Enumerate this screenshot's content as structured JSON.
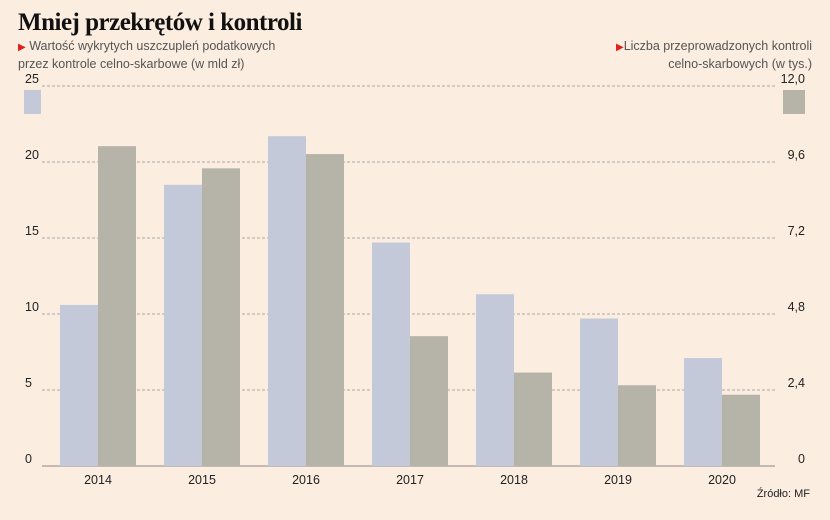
{
  "chart_data": {
    "type": "bar",
    "title": "Mniej przekrętów i kontroli",
    "categories": [
      "2014",
      "2015",
      "2016",
      "2017",
      "2018",
      "2019",
      "2020"
    ],
    "series": [
      {
        "name": "Wartość wykrytych uszczupleń podatkowych przez kontrole celno-skarbowe (w mld zł)",
        "axis": "left",
        "color": "#c3c9d9",
        "values": [
          10.6,
          18.5,
          21.7,
          14.7,
          11.3,
          9.7,
          7.1
        ]
      },
      {
        "name": "Liczba przeprowadzonych kontroli celno-skarbowych (w tys.)",
        "axis": "right",
        "color": "#b6b4a9",
        "values": [
          10.1,
          9.4,
          9.85,
          4.1,
          2.95,
          2.55,
          2.25
        ]
      }
    ],
    "left_axis": {
      "ylim": [
        0,
        25
      ],
      "ticks": [
        "0",
        "5",
        "10",
        "15",
        "20",
        "25"
      ]
    },
    "right_axis": {
      "ylim": [
        0,
        12
      ],
      "ticks": [
        "0",
        "2,4",
        "4,8",
        "7,2",
        "9,6",
        "12,0"
      ]
    },
    "grid": true,
    "legend": {
      "left_line1": "Wartość wykrytych uszczupleń podatkowych",
      "left_line2": "przez kontrole celno-skarbowe (w mld zł)",
      "right_line1": "Liczba przeprowadzonych kontroli",
      "right_line2": "celno-skarbowych (w tys.)",
      "marker": "▶"
    },
    "source": "Źródło: MF"
  }
}
